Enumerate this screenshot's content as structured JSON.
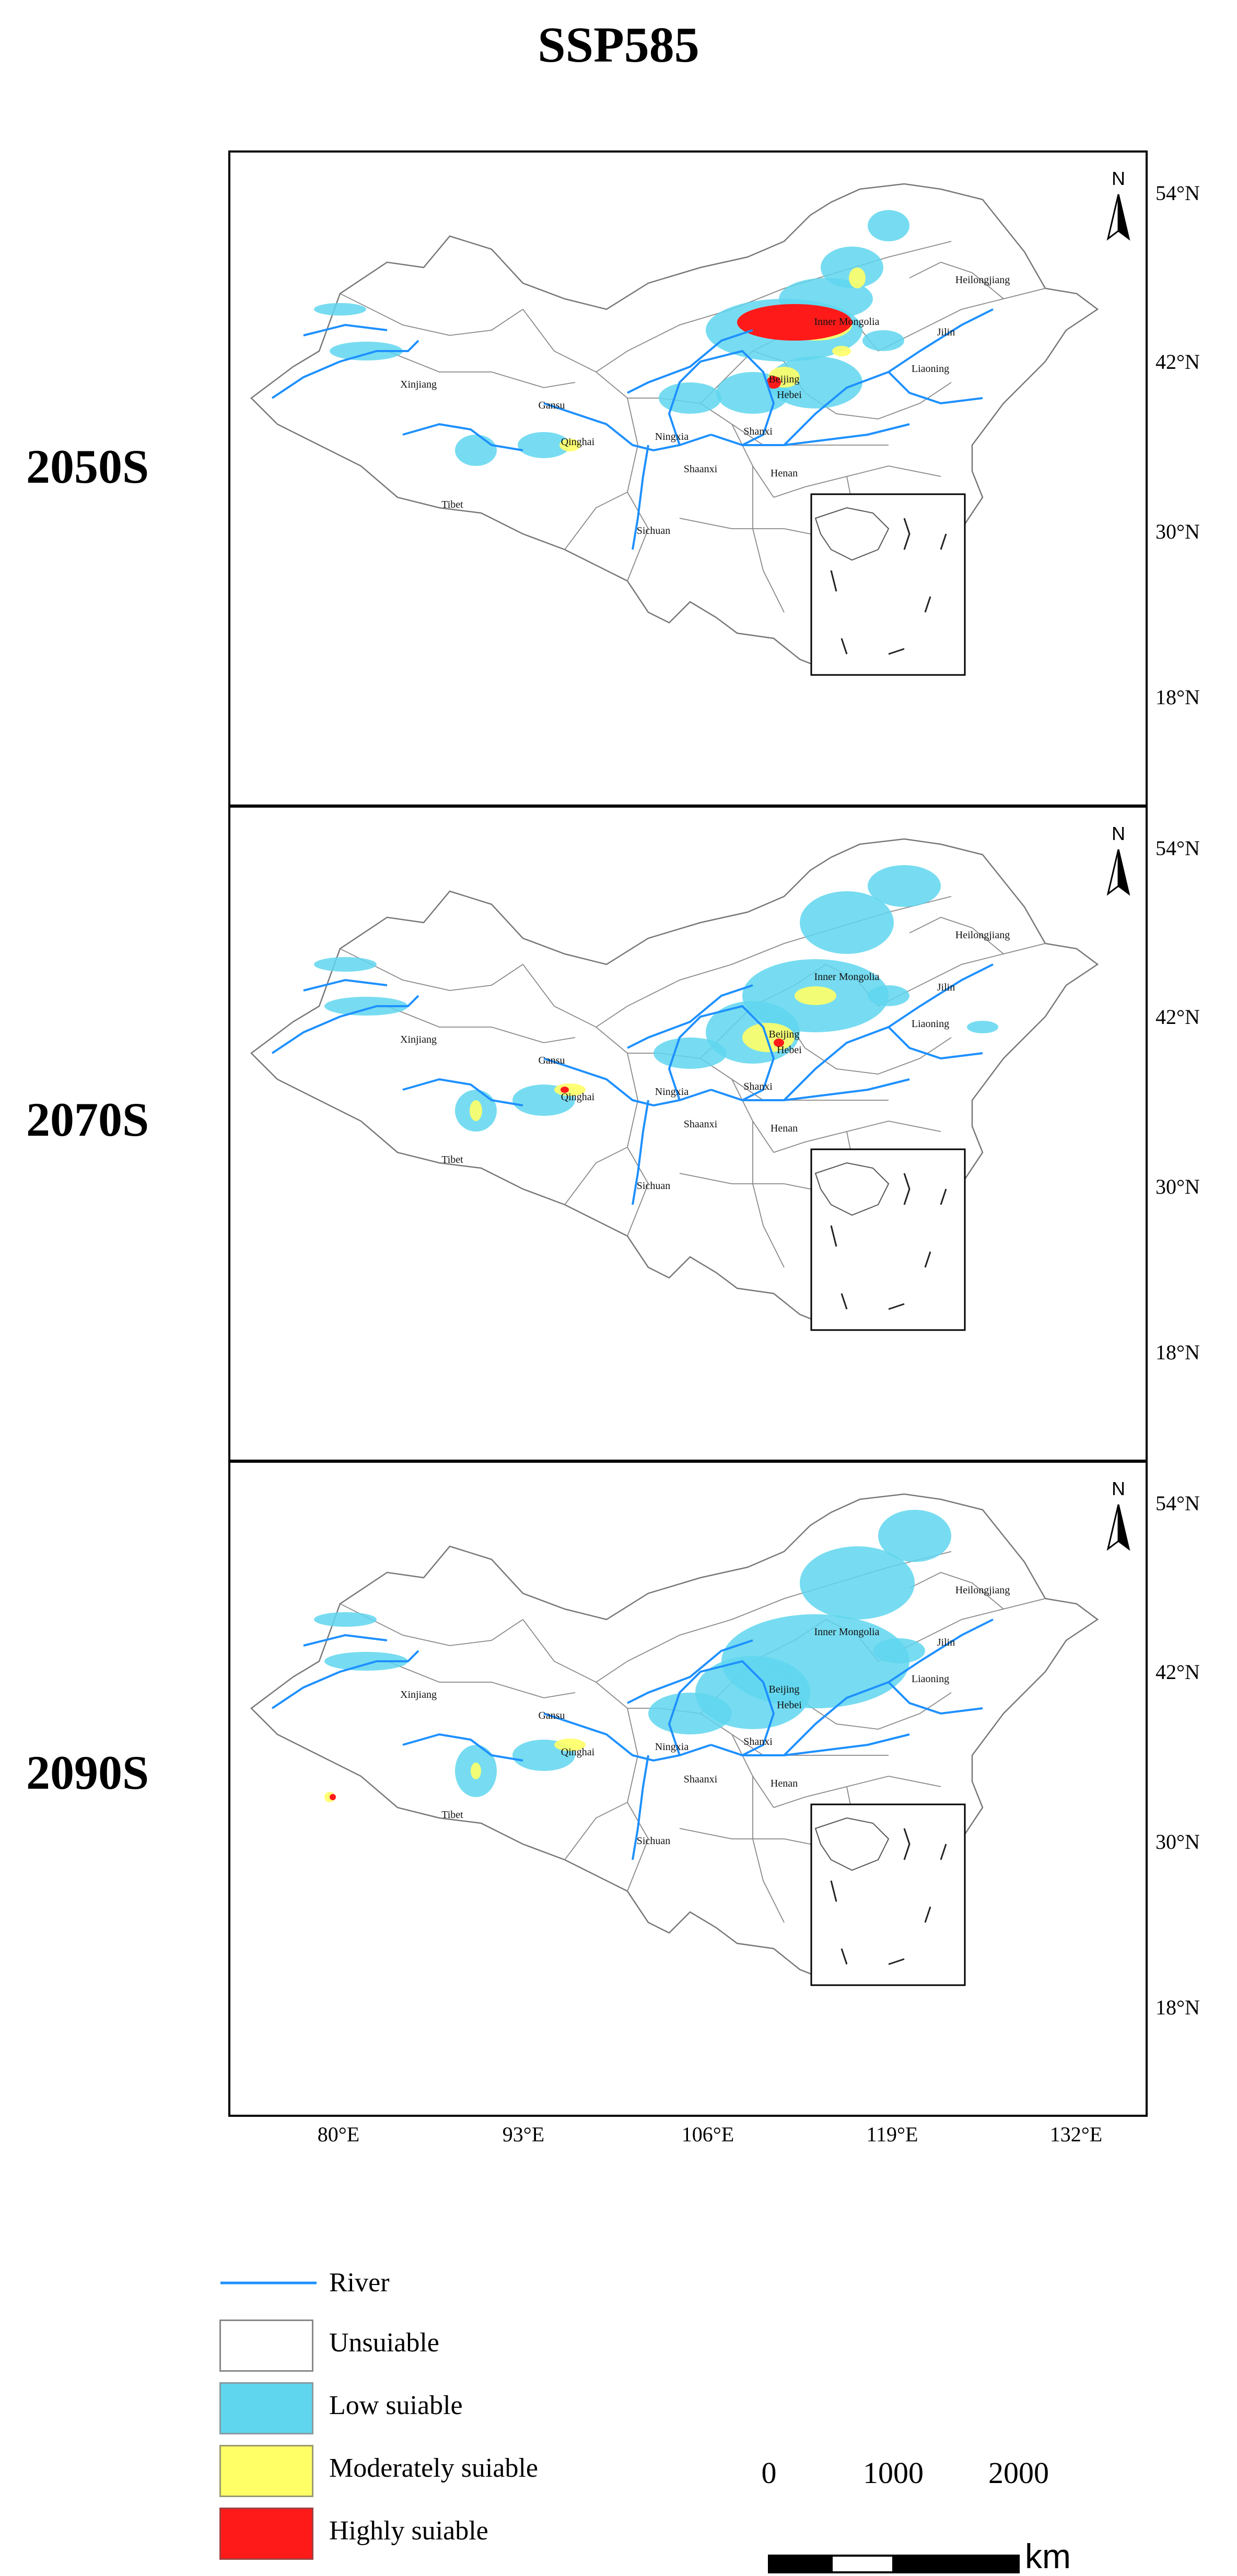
{
  "title": "SSP585",
  "periods": [
    "2050S",
    "2070S",
    "2090S"
  ],
  "latitude_ticks": [
    "54°N",
    "42°N",
    "30°N",
    "18°N"
  ],
  "longitude_ticks": [
    "80°E",
    "93°E",
    "106°E",
    "119°E",
    "132°E"
  ],
  "north_arrow": "N",
  "province_labels": [
    "Xinjiang",
    "Gansu",
    "Qinghai",
    "Tibet",
    "Sichuan",
    "Ningxia",
    "Shaanxi",
    "Shanxi",
    "Henan",
    "Hebei",
    "Beijing",
    "Inner Mongolia",
    "Liaoning",
    "Jilin",
    "Heilongjiang"
  ],
  "legend": {
    "river": "River",
    "unsuitable": "Unsuiable",
    "low": "Low suiable",
    "moderate": "Moderately suiable",
    "high": "Highly suiable"
  },
  "scale": {
    "ticks": [
      "0",
      "1000",
      "2000"
    ],
    "unit": "km"
  },
  "colors": {
    "river": "#1e90ff",
    "unsuitable": "#ffffff",
    "low": "#5fd6ee",
    "moderate": "#ffff66",
    "high": "#ff1a1a"
  }
}
